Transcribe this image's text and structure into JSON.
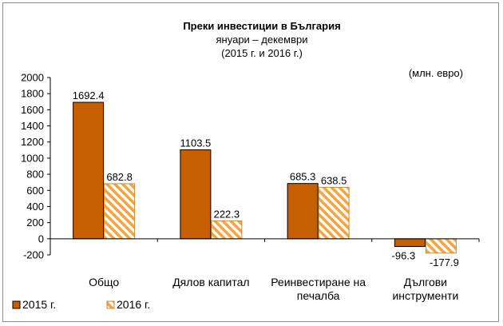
{
  "chart_data": {
    "type": "bar",
    "title": "Преки  инвестиции в България",
    "subtitle_lines": [
      "януари – декември",
      "(2015 г. и 2016 г.)"
    ],
    "unit_label": "(млн. евро)",
    "categories": [
      [
        "Общо"
      ],
      [
        "Дялов капитал"
      ],
      [
        "Реинвестиране на",
        "печалба"
      ],
      [
        "Дългови",
        "инструменти"
      ]
    ],
    "series": [
      {
        "name": "2015 г.",
        "values": [
          1692.4,
          1103.5,
          685.3,
          -96.3
        ],
        "color": "#c65f00",
        "pattern": "solid"
      },
      {
        "name": "2016 г.",
        "values": [
          682.8,
          222.3,
          638.5,
          -177.9
        ],
        "color": "#f4a442",
        "pattern": "hatched"
      }
    ],
    "value_labels": [
      [
        "1692.4",
        "1103.5",
        "685.3",
        "-96.3"
      ],
      [
        "682.8",
        "222.3",
        "638.5",
        "-177.9"
      ]
    ],
    "ylim": [
      -200,
      2000
    ],
    "yticks": [
      "-200",
      "0",
      "200",
      "400",
      "600",
      "800",
      "1000",
      "1200",
      "1400",
      "1600",
      "1800",
      "2000"
    ],
    "grid": false,
    "legend_position": "bottom-left"
  }
}
